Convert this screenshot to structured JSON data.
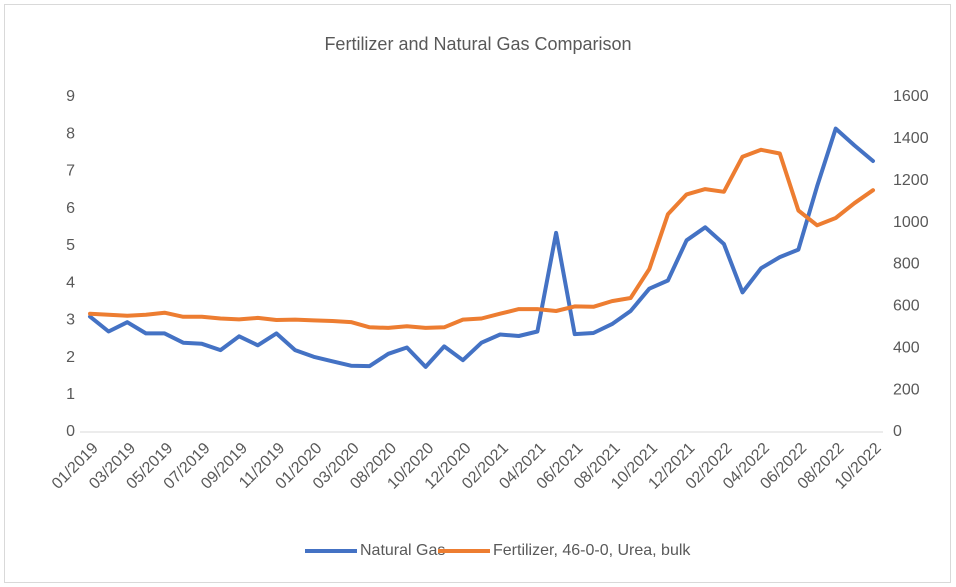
{
  "chart_data": {
    "type": "line",
    "title": "Fertilizer and Natural Gas Comparison",
    "categories": [
      "01/2019",
      null,
      "03/2019",
      null,
      "05/2019",
      null,
      "07/2019",
      null,
      "09/2019",
      null,
      "11/2019",
      null,
      "01/2020",
      null,
      "03/2020",
      null,
      "08/2020",
      null,
      "10/2020",
      null,
      "12/2020",
      null,
      "02/2021",
      null,
      "04/2021",
      null,
      "06/2021",
      null,
      "08/2021",
      null,
      "10/2021",
      null,
      "12/2021",
      null,
      "02/2022",
      null,
      "04/2022",
      null,
      "06/2022",
      null,
      "08/2022",
      null,
      "10/2022"
    ],
    "series": [
      {
        "name": "Natural Gas",
        "color": "#4472c4",
        "values": [
          3.1,
          2.7,
          2.95,
          2.65,
          2.65,
          2.4,
          2.37,
          2.2,
          2.57,
          2.33,
          2.65,
          2.2,
          2.02,
          1.9,
          1.78,
          1.77,
          2.1,
          2.27,
          1.75,
          2.3,
          1.93,
          2.4,
          2.62,
          2.58,
          2.7,
          5.35,
          2.63,
          2.66,
          2.9,
          3.25,
          3.85,
          4.07,
          5.15,
          5.5,
          5.05,
          3.75,
          4.4,
          4.7,
          4.9,
          6.6,
          8.15,
          7.7,
          7.28
        ]
      },
      {
        "name": "Fertilizer, 46-0-0, Urea, bulk",
        "color": "#ed7d31",
        "axis": "y2",
        "values": [
          565,
          560,
          555,
          560,
          570,
          550,
          550,
          542,
          538,
          545,
          535,
          537,
          533,
          530,
          525,
          500,
          497,
          505,
          497,
          500,
          537,
          542,
          565,
          587,
          587,
          578,
          600,
          598,
          625,
          640,
          778,
          1040,
          1135,
          1160,
          1147,
          1315,
          1348,
          1330,
          1058,
          987,
          1022,
          1093,
          1155
        ]
      }
    ],
    "ylim": [
      0,
      9
    ],
    "yticks": [
      0,
      1,
      2,
      3,
      4,
      5,
      6,
      7,
      8,
      9
    ],
    "y2lim": [
      0,
      1600
    ],
    "y2ticks": [
      0,
      200,
      400,
      600,
      800,
      1000,
      1200,
      1400,
      1600
    ],
    "grid": false,
    "legend": "bottom"
  }
}
